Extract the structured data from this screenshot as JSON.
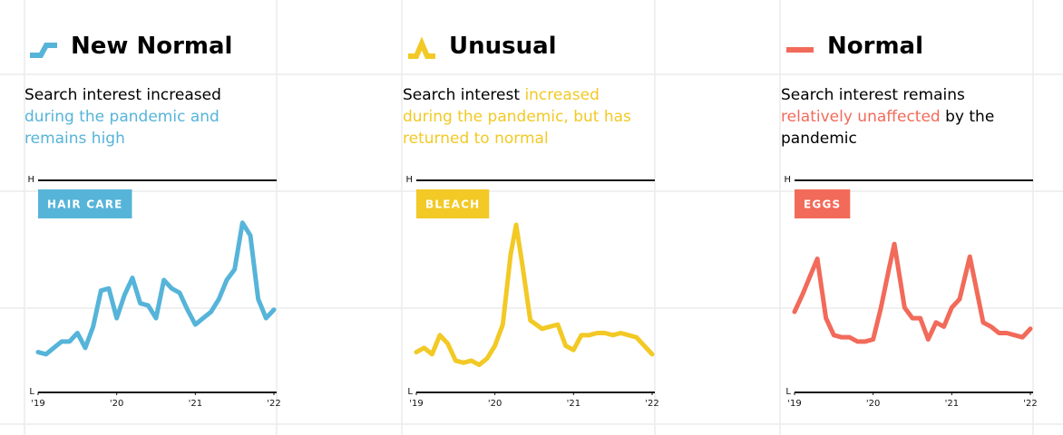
{
  "chart_data": [
    {
      "type": "line",
      "title": "New Normal",
      "description": [
        {
          "text": "Search interest increased ",
          "color": "#000000"
        },
        {
          "text": "during the pandemic and remains high",
          "color": "#56b4d9"
        }
      ],
      "series": [
        {
          "name": "HAIR CARE",
          "color": "#56b4d9",
          "values": [
            19,
            18,
            21,
            24,
            24,
            28,
            21,
            31,
            48,
            49,
            35,
            46,
            54,
            42,
            41,
            35,
            53,
            49,
            47,
            39,
            32,
            35,
            38,
            44,
            53,
            58,
            80,
            74,
            44,
            35,
            39
          ]
        }
      ],
      "x": [
        2019.0,
        2019.1,
        2019.2,
        2019.3,
        2019.4,
        2019.5,
        2019.6,
        2019.7,
        2019.8,
        2019.9,
        2020.0,
        2020.1,
        2020.2,
        2020.3,
        2020.4,
        2020.5,
        2020.6,
        2020.7,
        2020.8,
        2020.9,
        2021.0,
        2021.1,
        2021.2,
        2021.3,
        2021.4,
        2021.5,
        2021.6,
        2021.7,
        2021.8,
        2021.9,
        2022.0
      ],
      "xlim": [
        2019,
        2022
      ],
      "xticks": [
        {
          "value": 2019,
          "label": "'19"
        },
        {
          "value": 2020,
          "label": "'20"
        },
        {
          "value": 2021,
          "label": "'21"
        },
        {
          "value": 2022,
          "label": "'22"
        }
      ],
      "ylim": [
        0,
        100
      ],
      "yticks": [
        {
          "value": 0,
          "label": "L"
        },
        {
          "value": 100,
          "label": "H"
        }
      ]
    },
    {
      "type": "line",
      "title": "Unusual",
      "description": [
        {
          "text": "Search interest ",
          "color": "#000000"
        },
        {
          "text": "increased during the pandemic, but has returned to normal",
          "color": "#f2c925"
        }
      ],
      "series": [
        {
          "name": "BLEACH",
          "color": "#f2c925",
          "values": [
            19,
            21,
            18,
            27,
            23,
            15,
            14,
            15,
            13,
            16,
            22,
            32,
            65,
            79,
            60,
            34,
            30,
            31,
            32,
            22,
            20,
            27,
            27,
            28,
            28,
            27,
            28,
            27,
            26,
            22,
            18
          ]
        }
      ],
      "x": [
        2019.0,
        2019.1,
        2019.2,
        2019.3,
        2019.4,
        2019.5,
        2019.6,
        2019.7,
        2019.8,
        2019.9,
        2020.0,
        2020.1,
        2020.2,
        2020.27,
        2020.35,
        2020.45,
        2020.6,
        2020.7,
        2020.8,
        2020.9,
        2021.0,
        2021.1,
        2021.2,
        2021.3,
        2021.4,
        2021.5,
        2021.6,
        2021.7,
        2021.8,
        2021.9,
        2022.0
      ],
      "xlim": [
        2019,
        2022
      ],
      "xticks": [
        {
          "value": 2019,
          "label": "'19"
        },
        {
          "value": 2020,
          "label": "'20"
        },
        {
          "value": 2021,
          "label": "'21"
        },
        {
          "value": 2022,
          "label": "'22"
        }
      ],
      "ylim": [
        0,
        100
      ],
      "yticks": [
        {
          "value": 0,
          "label": "L"
        },
        {
          "value": 100,
          "label": "H"
        }
      ]
    },
    {
      "type": "line",
      "title": "Normal",
      "description": [
        {
          "text": "Search interest remains ",
          "color": "#000000"
        },
        {
          "text": "relatively unaffected",
          "color": "#f26a5a"
        },
        {
          "text": " by the pandemic",
          "color": "#000000"
        }
      ],
      "series": [
        {
          "name": "EGGS",
          "color": "#f26a5a",
          "values": [
            38,
            46,
            55,
            63,
            35,
            27,
            26,
            26,
            24,
            24,
            25,
            40,
            58,
            70,
            40,
            35,
            35,
            25,
            33,
            31,
            40,
            44,
            64,
            33,
            31,
            28,
            28,
            27,
            26,
            30
          ]
        }
      ],
      "x": [
        2019.0,
        2019.1,
        2019.2,
        2019.29,
        2019.4,
        2019.5,
        2019.6,
        2019.7,
        2019.8,
        2019.9,
        2020.0,
        2020.1,
        2020.2,
        2020.27,
        2020.4,
        2020.5,
        2020.6,
        2020.7,
        2020.8,
        2020.9,
        2021.0,
        2021.1,
        2021.23,
        2021.4,
        2021.5,
        2021.6,
        2021.7,
        2021.8,
        2021.9,
        2022.0
      ],
      "xlim": [
        2019,
        2022
      ],
      "xticks": [
        {
          "value": 2019,
          "label": "'19"
        },
        {
          "value": 2020,
          "label": "'20"
        },
        {
          "value": 2021,
          "label": "'21"
        },
        {
          "value": 2022,
          "label": "'22"
        }
      ],
      "ylim": [
        0,
        100
      ],
      "yticks": [
        {
          "value": 0,
          "label": "L"
        },
        {
          "value": 100,
          "label": "H"
        }
      ]
    }
  ]
}
